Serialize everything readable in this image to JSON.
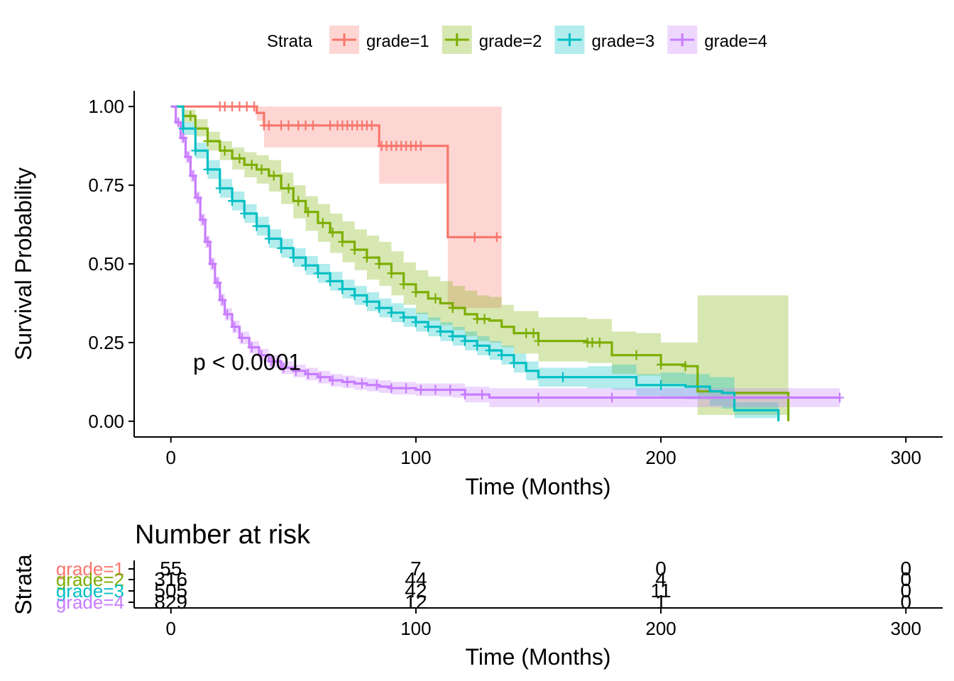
{
  "legend": {
    "title": "Strata",
    "items": [
      {
        "label": "grade=1",
        "color": "#F8766D"
      },
      {
        "label": "grade=2",
        "color": "#7CAE00"
      },
      {
        "label": "grade=3",
        "color": "#00BFC4"
      },
      {
        "label": "grade=4",
        "color": "#C77CFF"
      }
    ]
  },
  "chart_data": [
    {
      "type": "line",
      "subtype": "kaplan-meier survival curve with confidence bands",
      "xlabel": "Time (Months)",
      "ylabel": "Survival Probability",
      "xlim": [
        -15,
        315
      ],
      "ylim": [
        -0.05,
        1.05
      ],
      "x_ticks": [
        0,
        100,
        200,
        300
      ],
      "y_ticks": [
        0.0,
        0.25,
        0.5,
        0.75,
        1.0
      ],
      "y_tick_labels": [
        "0.00",
        "0.25",
        "0.50",
        "0.75",
        "1.00"
      ],
      "grid": false,
      "legend_position": "top",
      "annotation": "p < 0.0001",
      "annotation_at": [
        5,
        0.19
      ],
      "series": [
        {
          "name": "grade=1",
          "color": "#F8766D",
          "x": [
            0,
            35,
            38,
            85,
            113,
            135
          ],
          "y": [
            1.0,
            0.98,
            0.94,
            0.875,
            0.585,
            0.585
          ],
          "lower": [
            1.0,
            0.955,
            0.87,
            0.755,
            0.36,
            0.36
          ],
          "upper": [
            1.0,
            1.0,
            1.0,
            1.0,
            1.0,
            1.0
          ],
          "censor_x": [
            20,
            22,
            25,
            28,
            31,
            34,
            38,
            40,
            45,
            48,
            52,
            55,
            58,
            65,
            68,
            70,
            72,
            74,
            76,
            78,
            80,
            82,
            86,
            88,
            90,
            92,
            94,
            96,
            98,
            100,
            102,
            124,
            133
          ]
        },
        {
          "name": "grade=2",
          "color": "#7CAE00",
          "x": [
            0,
            5,
            10,
            15,
            20,
            25,
            30,
            35,
            40,
            45,
            50,
            55,
            60,
            65,
            70,
            75,
            80,
            85,
            90,
            95,
            100,
            105,
            110,
            115,
            120,
            125,
            130,
            135,
            140,
            150,
            160,
            170,
            180,
            190,
            200,
            210,
            215,
            225,
            235,
            245,
            252
          ],
          "y": [
            1.0,
            0.97,
            0.93,
            0.89,
            0.86,
            0.835,
            0.815,
            0.8,
            0.78,
            0.74,
            0.7,
            0.665,
            0.63,
            0.6,
            0.57,
            0.545,
            0.52,
            0.5,
            0.47,
            0.435,
            0.41,
            0.39,
            0.375,
            0.36,
            0.34,
            0.325,
            0.32,
            0.3,
            0.28,
            0.255,
            0.255,
            0.25,
            0.21,
            0.21,
            0.18,
            0.175,
            0.095,
            0.09,
            0.09,
            0.09,
            0.0
          ],
          "lower": [
            1.0,
            0.95,
            0.905,
            0.86,
            0.83,
            0.8,
            0.775,
            0.755,
            0.73,
            0.69,
            0.645,
            0.605,
            0.57,
            0.535,
            0.505,
            0.48,
            0.45,
            0.43,
            0.4,
            0.37,
            0.34,
            0.32,
            0.305,
            0.29,
            0.27,
            0.255,
            0.25,
            0.235,
            0.215,
            0.19,
            0.19,
            0.185,
            0.15,
            0.145,
            0.12,
            0.11,
            0.02,
            0.02,
            0.02,
            0.02,
            0.0
          ],
          "upper": [
            1.0,
            0.99,
            0.96,
            0.92,
            0.89,
            0.87,
            0.855,
            0.845,
            0.83,
            0.79,
            0.75,
            0.715,
            0.69,
            0.66,
            0.635,
            0.61,
            0.59,
            0.57,
            0.54,
            0.505,
            0.48,
            0.46,
            0.445,
            0.43,
            0.415,
            0.4,
            0.395,
            0.37,
            0.35,
            0.33,
            0.33,
            0.325,
            0.285,
            0.28,
            0.25,
            0.25,
            0.4,
            0.4,
            0.4,
            0.4,
            0.4
          ],
          "censor_x": [
            8,
            15,
            22,
            28,
            33,
            37,
            42,
            48,
            52,
            56,
            62,
            66,
            70,
            75,
            80,
            85,
            90,
            95,
            100,
            108,
            115,
            125,
            128,
            145,
            148,
            150,
            170,
            172,
            175,
            190,
            200,
            210
          ]
        },
        {
          "name": "grade=3",
          "color": "#00BFC4",
          "x": [
            0,
            5,
            10,
            15,
            20,
            25,
            30,
            35,
            40,
            45,
            50,
            55,
            60,
            65,
            70,
            75,
            80,
            85,
            90,
            95,
            100,
            105,
            110,
            115,
            120,
            125,
            130,
            135,
            140,
            145,
            150,
            160,
            170,
            180,
            190,
            200,
            210,
            220,
            225,
            230,
            240,
            248
          ],
          "y": [
            1.0,
            0.93,
            0.86,
            0.8,
            0.74,
            0.7,
            0.66,
            0.62,
            0.58,
            0.55,
            0.52,
            0.495,
            0.47,
            0.445,
            0.42,
            0.4,
            0.38,
            0.36,
            0.345,
            0.33,
            0.315,
            0.3,
            0.285,
            0.27,
            0.255,
            0.24,
            0.225,
            0.21,
            0.185,
            0.16,
            0.14,
            0.14,
            0.14,
            0.14,
            0.115,
            0.115,
            0.11,
            0.095,
            0.09,
            0.035,
            0.035,
            0.0
          ],
          "lower": [
            1.0,
            0.91,
            0.835,
            0.77,
            0.71,
            0.67,
            0.63,
            0.59,
            0.55,
            0.52,
            0.49,
            0.465,
            0.44,
            0.415,
            0.39,
            0.37,
            0.35,
            0.33,
            0.315,
            0.3,
            0.285,
            0.27,
            0.255,
            0.24,
            0.225,
            0.21,
            0.195,
            0.18,
            0.155,
            0.13,
            0.11,
            0.11,
            0.105,
            0.1,
            0.08,
            0.075,
            0.07,
            0.05,
            0.04,
            0.01,
            0.01,
            0.0
          ],
          "upper": [
            1.0,
            0.95,
            0.885,
            0.83,
            0.77,
            0.73,
            0.69,
            0.65,
            0.61,
            0.58,
            0.55,
            0.525,
            0.5,
            0.475,
            0.45,
            0.43,
            0.41,
            0.39,
            0.375,
            0.36,
            0.345,
            0.33,
            0.315,
            0.3,
            0.285,
            0.27,
            0.255,
            0.24,
            0.215,
            0.19,
            0.17,
            0.17,
            0.175,
            0.18,
            0.15,
            0.155,
            0.15,
            0.14,
            0.14,
            0.06,
            0.06,
            0.06
          ],
          "censor_x": [
            5,
            10,
            15,
            20,
            25,
            30,
            35,
            40,
            45,
            50,
            55,
            60,
            65,
            70,
            75,
            80,
            85,
            90,
            95,
            100,
            105,
            110,
            115,
            120,
            125,
            130,
            135,
            140,
            160,
            200
          ]
        },
        {
          "name": "grade=4",
          "color": "#C77CFF",
          "x": [
            0,
            2,
            4,
            6,
            8,
            10,
            12,
            14,
            16,
            18,
            20,
            22,
            25,
            28,
            32,
            36,
            40,
            45,
            50,
            55,
            60,
            65,
            70,
            75,
            80,
            85,
            90,
            100,
            110,
            115,
            120,
            130,
            150,
            200,
            250,
            273
          ],
          "y": [
            1.0,
            0.95,
            0.9,
            0.84,
            0.78,
            0.71,
            0.64,
            0.57,
            0.5,
            0.44,
            0.385,
            0.34,
            0.3,
            0.265,
            0.235,
            0.21,
            0.19,
            0.17,
            0.16,
            0.15,
            0.14,
            0.13,
            0.125,
            0.12,
            0.115,
            0.11,
            0.105,
            0.1,
            0.1,
            0.1,
            0.085,
            0.075,
            0.075,
            0.075,
            0.075,
            0.075
          ],
          "lower": [
            1.0,
            0.94,
            0.885,
            0.82,
            0.76,
            0.69,
            0.62,
            0.55,
            0.48,
            0.42,
            0.365,
            0.32,
            0.28,
            0.245,
            0.215,
            0.19,
            0.17,
            0.15,
            0.14,
            0.13,
            0.12,
            0.11,
            0.105,
            0.1,
            0.095,
            0.09,
            0.085,
            0.08,
            0.078,
            0.075,
            0.06,
            0.045,
            0.045,
            0.045,
            0.045,
            0.045
          ],
          "upper": [
            1.0,
            0.96,
            0.915,
            0.86,
            0.8,
            0.73,
            0.66,
            0.59,
            0.52,
            0.46,
            0.405,
            0.36,
            0.32,
            0.285,
            0.255,
            0.23,
            0.21,
            0.19,
            0.18,
            0.17,
            0.16,
            0.15,
            0.145,
            0.14,
            0.135,
            0.13,
            0.125,
            0.12,
            0.12,
            0.12,
            0.11,
            0.105,
            0.105,
            0.105,
            0.105,
            0.105
          ],
          "censor_x": [
            3,
            5,
            7,
            9,
            11,
            13,
            15,
            17,
            19,
            21,
            23,
            26,
            29,
            33,
            37,
            41,
            46,
            51,
            56,
            61,
            66,
            72,
            78,
            84,
            90,
            96,
            102,
            108,
            114,
            120,
            127,
            150,
            180,
            273
          ]
        }
      ]
    },
    {
      "type": "table",
      "title": "Number at risk",
      "xlabel": "Time (Months)",
      "ylabel": "Strata",
      "x_ticks": [
        0,
        100,
        200,
        300
      ],
      "rows": [
        {
          "label": "grade=1",
          "color": "#F8766D",
          "values": [
            "55",
            "7",
            "0",
            "0"
          ]
        },
        {
          "label": "grade=2",
          "color": "#7CAE00",
          "values": [
            "316",
            "44",
            "4",
            "0"
          ]
        },
        {
          "label": "grade=3",
          "color": "#00BFC4",
          "values": [
            "505",
            "42",
            "11",
            "0"
          ]
        },
        {
          "label": "grade=4",
          "color": "#C77CFF",
          "values": [
            "829",
            "12",
            "1",
            "0"
          ]
        }
      ]
    }
  ]
}
